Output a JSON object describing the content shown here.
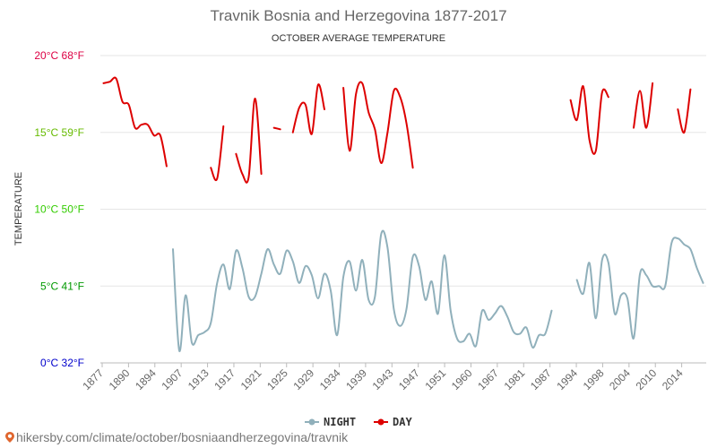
{
  "chart_data": {
    "type": "line",
    "title": "Travnik Bosnia and Herzegovina 1877-2017",
    "subtitle": "OCTOBER AVERAGE TEMPERATURE",
    "ylabel": "TEMPERATURE",
    "ylim": [
      0,
      20
    ],
    "grid": true,
    "legend_position": "bottom",
    "y_ticks": [
      {
        "value": 0,
        "label": "0°C 32°F",
        "color": "#0000cc"
      },
      {
        "value": 5,
        "label": "5°C 41°F",
        "color": "#009900"
      },
      {
        "value": 10,
        "label": "10°C 50°F",
        "color": "#33cc00"
      },
      {
        "value": 15,
        "label": "15°C 59°F",
        "color": "#66bb00"
      },
      {
        "value": 20,
        "label": "20°C 68°F",
        "color": "#dd0044"
      }
    ],
    "x_tick_labels": [
      "1877",
      "1890",
      "1894",
      "1907",
      "1913",
      "1917",
      "1921",
      "1925",
      "1929",
      "1934",
      "1939",
      "1943",
      "1947",
      "1951",
      "1960",
      "1967",
      "1981",
      "1987",
      "1994",
      "1998",
      "2004",
      "2010",
      "2014"
    ],
    "series": [
      {
        "name": "NIGHT",
        "color": "#90b0bb",
        "segments": [
          [
            [
              11,
              7.4
            ],
            [
              12,
              0.8
            ],
            [
              13,
              4.4
            ],
            [
              14,
              1.3
            ],
            [
              15,
              1.8
            ],
            [
              16,
              2.0
            ],
            [
              17,
              2.6
            ],
            [
              18,
              5.2
            ],
            [
              19,
              6.4
            ],
            [
              20,
              4.8
            ],
            [
              21,
              7.3
            ],
            [
              22,
              6.2
            ],
            [
              23,
              4.3
            ],
            [
              24,
              4.3
            ],
            [
              25,
              5.8
            ],
            [
              26,
              7.4
            ],
            [
              27,
              6.4
            ],
            [
              28,
              5.8
            ],
            [
              29,
              7.3
            ],
            [
              30,
              6.6
            ],
            [
              31,
              5.2
            ],
            [
              32,
              6.3
            ],
            [
              33,
              5.7
            ],
            [
              34,
              4.2
            ],
            [
              35,
              5.8
            ],
            [
              36,
              4.7
            ],
            [
              37,
              1.8
            ],
            [
              38,
              5.6
            ],
            [
              39,
              6.6
            ],
            [
              40,
              4.7
            ],
            [
              41,
              6.7
            ],
            [
              42,
              4.1
            ],
            [
              43,
              4.3
            ],
            [
              44,
              8.4
            ],
            [
              45,
              7.5
            ],
            [
              46,
              3.5
            ],
            [
              47,
              2.4
            ],
            [
              48,
              3.5
            ],
            [
              49,
              6.9
            ],
            [
              50,
              6.3
            ],
            [
              51,
              4.1
            ],
            [
              52,
              5.3
            ],
            [
              53,
              3.2
            ],
            [
              54,
              7.0
            ],
            [
              55,
              3.4
            ],
            [
              56,
              1.6
            ],
            [
              57,
              1.4
            ],
            [
              58,
              1.9
            ],
            [
              59,
              1.1
            ],
            [
              60,
              3.4
            ],
            [
              61,
              2.8
            ],
            [
              62,
              3.2
            ],
            [
              63,
              3.7
            ],
            [
              64,
              3.0
            ],
            [
              65,
              2.0
            ],
            [
              66,
              1.9
            ],
            [
              67,
              2.3
            ],
            [
              68,
              1.0
            ],
            [
              69,
              1.8
            ],
            [
              70,
              1.9
            ],
            [
              71,
              3.4
            ]
          ],
          [
            [
              75,
              5.4
            ],
            [
              76,
              4.5
            ],
            [
              77,
              6.5
            ],
            [
              78,
              2.9
            ],
            [
              79,
              6.7
            ],
            [
              80,
              6.5
            ],
            [
              81,
              3.2
            ],
            [
              82,
              4.4
            ],
            [
              83,
              4.2
            ],
            [
              84,
              1.6
            ],
            [
              85,
              5.8
            ],
            [
              86,
              5.7
            ],
            [
              87,
              5.0
            ],
            [
              88,
              5.0
            ],
            [
              89,
              5.0
            ],
            [
              90,
              7.8
            ],
            [
              91,
              8.1
            ],
            [
              92,
              7.7
            ],
            [
              93,
              7.4
            ],
            [
              94,
              6.2
            ],
            [
              95,
              5.2
            ]
          ]
        ]
      },
      {
        "name": "DAY",
        "color": "#dd0000",
        "segments": [
          [
            [
              0,
              18.2
            ],
            [
              1,
              18.3
            ],
            [
              2,
              18.5
            ],
            [
              3,
              17.0
            ],
            [
              4,
              16.8
            ],
            [
              5,
              15.3
            ],
            [
              6,
              15.5
            ],
            [
              7,
              15.5
            ],
            [
              8,
              14.8
            ],
            [
              9,
              14.8
            ],
            [
              10,
              12.8
            ]
          ],
          [
            [
              17,
              12.7
            ],
            [
              18,
              12.0
            ],
            [
              19,
              15.4
            ]
          ],
          [
            [
              21,
              13.6
            ],
            [
              22,
              12.3
            ],
            [
              23,
              12.1
            ],
            [
              24,
              17.2
            ],
            [
              25,
              12.3
            ]
          ],
          [
            [
              27,
              15.3
            ],
            [
              28,
              15.2
            ]
          ],
          [
            [
              30,
              15.0
            ],
            [
              31,
              16.6
            ],
            [
              32,
              16.8
            ],
            [
              33,
              14.9
            ],
            [
              34,
              18.1
            ],
            [
              35,
              16.5
            ]
          ],
          [
            [
              38,
              17.9
            ],
            [
              39,
              13.8
            ],
            [
              40,
              17.5
            ],
            [
              41,
              18.2
            ],
            [
              42,
              16.3
            ],
            [
              43,
              15.2
            ],
            [
              44,
              13.0
            ],
            [
              45,
              15.0
            ],
            [
              46,
              17.7
            ],
            [
              47,
              17.3
            ],
            [
              48,
              15.6
            ],
            [
              49,
              12.7
            ]
          ],
          [
            [
              74,
              17.1
            ],
            [
              75,
              15.8
            ],
            [
              76,
              18.0
            ],
            [
              77,
              14.5
            ],
            [
              78,
              13.8
            ],
            [
              79,
              17.6
            ],
            [
              80,
              17.3
            ]
          ],
          [
            [
              84,
              15.3
            ],
            [
              85,
              17.7
            ],
            [
              86,
              15.3
            ],
            [
              87,
              18.2
            ]
          ],
          [
            [
              91,
              16.5
            ],
            [
              92,
              15.0
            ],
            [
              93,
              17.8
            ]
          ]
        ]
      }
    ]
  },
  "footer": {
    "text": "hikersby.com/climate/october/bosniaandherzegovina/travnik",
    "icon": "map-pin-icon",
    "icon_color": "#e0662e"
  }
}
